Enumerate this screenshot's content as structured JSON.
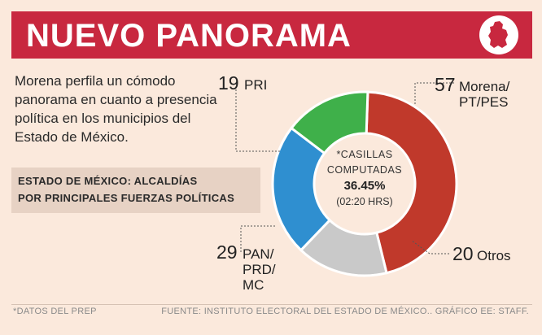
{
  "header": {
    "title": "NUEVO PANORAMA",
    "accent_color": "#c8283f",
    "icon": "state-map-icon"
  },
  "intro": {
    "lines": [
      "Morena perfila un cómodo",
      "panorama en cuanto a presencia",
      "política en los municipios del",
      "Estado de México."
    ]
  },
  "subtitle": {
    "lines": [
      "ESTADO DE MÉXICO: ALCALDÍAS",
      "POR PRINCIPALES FUERZAS POLÍTICAS"
    ]
  },
  "chart_data": {
    "type": "pie",
    "variant": "donut",
    "categories": [
      "Morena/PT/PES",
      "Otros",
      "PAN/PRD/MC",
      "PRI"
    ],
    "values": [
      57,
      20,
      29,
      19
    ],
    "colors": [
      "#c0392b",
      "#c9c9c9",
      "#2f8fd0",
      "#3fb04a"
    ],
    "center": {
      "lines": [
        "*CASILLAS",
        "COMPUTADAS",
        "36.45%",
        "(02:20 HRS)"
      ]
    },
    "labels": [
      {
        "value": "57",
        "name_lines": [
          "Morena/",
          "PT/PES"
        ]
      },
      {
        "value": "20",
        "name_lines": [
          "Otros"
        ]
      },
      {
        "value": "29",
        "name_lines": [
          "PAN/",
          "PRD/",
          "MC"
        ]
      },
      {
        "value": "19",
        "name_lines": [
          "PRI"
        ]
      }
    ]
  },
  "footer": {
    "note": "*DATOS DEL PREP",
    "source": "FUENTE: INSTITUTO ELECTORAL DEL ESTADO DE MÉXICO.. GRÁFICO EE: STAFF."
  }
}
